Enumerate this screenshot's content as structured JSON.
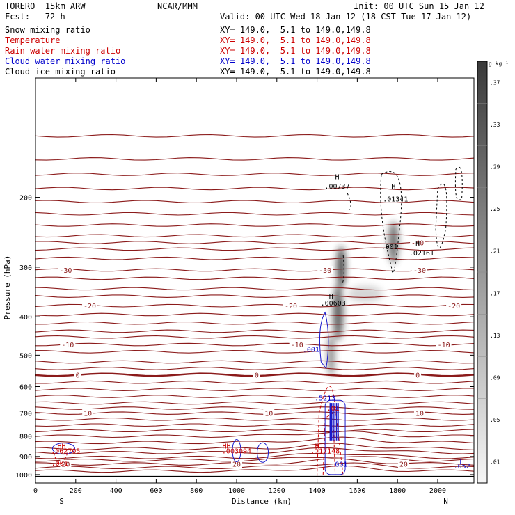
{
  "header": {
    "model": "TORERO  15km ARW",
    "org": "NCAR/MMM",
    "init": "Init: 00 UTC Sun 15 Jan 12",
    "fcst": "Fcst:   72 h",
    "valid": "Valid: 00 UTC Wed 18 Jan 12 (18 CST Tue 17 Jan 12)"
  },
  "fields": [
    {
      "name": "Snow mixing ratio",
      "xy": "XY= 149.0,  5.1 to 149.0,149.8",
      "color": "#000000"
    },
    {
      "name": "Temperature",
      "xy": "XY= 149.0,  5.1 to 149.0,149.8",
      "color": "#cc0000"
    },
    {
      "name": "Rain water mixing ratio",
      "xy": "XY= 149.0,  5.1 to 149.0,149.8",
      "color": "#cc0000"
    },
    {
      "name": "Cloud water mixing ratio",
      "xy": "XY= 149.0,  5.1 to 149.0,149.8",
      "color": "#0000cc"
    },
    {
      "name": "Cloud ice mixing ratio",
      "xy": "XY= 149.0,  5.1 to 149.0,149.8",
      "color": "#000000"
    }
  ],
  "chart_data": {
    "type": "contour",
    "title": "",
    "xlabel": "Distance (km)",
    "ylabel": "Pressure (hPa)",
    "xlim": [
      0,
      2180
    ],
    "ylim": [
      1050,
      100
    ],
    "yscale": "log",
    "x_ticks": [
      "0",
      "200",
      "400",
      "600",
      "800",
      "1000",
      "1200",
      "1400",
      "1600",
      "1800",
      "2000"
    ],
    "x_tick_values": [
      0,
      200,
      400,
      600,
      800,
      1000,
      1200,
      1400,
      1600,
      1800,
      2000
    ],
    "y_ticks": [
      "200",
      "300",
      "400",
      "500",
      "600",
      "700",
      "800",
      "900",
      "1000"
    ],
    "y_tick_values": [
      200,
      300,
      400,
      500,
      600,
      700,
      800,
      900,
      1000
    ],
    "x_end_labels": {
      "left": "S",
      "right": "N"
    },
    "temperature_contours_C": [
      {
        "value": 20,
        "p": 940,
        "label_x": [
          150,
          1000,
          1830
        ]
      },
      {
        "value": 10,
        "p": 700,
        "label_x": [
          260,
          1160,
          1910
        ]
      },
      {
        "value": 0,
        "p": 560,
        "label_x": [
          210,
          1100,
          1900
        ]
      },
      {
        "value": -10,
        "p": 470,
        "label_x": [
          160,
          1300,
          2030
        ]
      },
      {
        "value": -20,
        "p": 375,
        "label_x": [
          270,
          1270,
          2080
        ]
      },
      {
        "value": -30,
        "p": 305,
        "label_x": [
          150,
          1440,
          1910
        ]
      },
      {
        "value": -40,
        "p": 260,
        "label_x": [
          1900
        ]
      }
    ],
    "annotations": [
      {
        "text": "H",
        "x": 1500,
        "p": 180,
        "color": "#000000"
      },
      {
        "text": ".00737",
        "x": 1500,
        "p": 190,
        "color": "#000000"
      },
      {
        "text": "H",
        "x": 1780,
        "p": 190,
        "color": "#000000"
      },
      {
        "text": ".01341",
        "x": 1790,
        "p": 205,
        "color": "#000000"
      },
      {
        "text": ".001",
        "x": 1760,
        "p": 270,
        "color": "#000000"
      },
      {
        "text": "H",
        "x": 1900,
        "p": 265,
        "color": "#000000"
      },
      {
        "text": ".02161",
        "x": 1920,
        "p": 280,
        "color": "#000000"
      },
      {
        "text": "H",
        "x": 1470,
        "p": 360,
        "color": "#000000"
      },
      {
        "text": ".00603",
        "x": 1480,
        "p": 375,
        "color": "#000000"
      },
      {
        "text": ".001",
        "x": 1370,
        "p": 490,
        "color": "#0000cc"
      },
      {
        "text": ".5213",
        "x": 1440,
        "p": 650,
        "color": "#0000cc"
      },
      {
        "text": ".01",
        "x": 1480,
        "p": 690,
        "color": "#cc0000"
      },
      {
        "text": "HH",
        "x": 130,
        "p": 860,
        "color": "#cc0000"
      },
      {
        "text": ".062705",
        "x": 150,
        "p": 885,
        "color": "#cc0000"
      },
      {
        "text": ".001",
        "x": 120,
        "p": 950,
        "color": "#cc0000"
      },
      {
        "text": "HH",
        "x": 950,
        "p": 860,
        "color": "#cc0000"
      },
      {
        "text": ".003094",
        "x": 1000,
        "p": 885,
        "color": "#cc0000"
      },
      {
        "text": "H",
        "x": 1400,
        "p": 860,
        "color": "#cc0000"
      },
      {
        "text": ".117148",
        "x": 1440,
        "p": 885,
        "color": "#cc0000"
      },
      {
        "text": ".001",
        "x": 1510,
        "p": 955,
        "color": "#0000cc"
      },
      {
        "text": "H",
        "x": 2120,
        "p": 940,
        "color": "#0000cc"
      },
      {
        "text": ".052",
        "x": 2120,
        "p": 965,
        "color": "#0000cc"
      }
    ],
    "colorbar": {
      "unit": "g kg⁻¹",
      "labels": [
        ".37",
        ".33",
        ".29",
        ".25",
        ".21",
        ".17",
        ".13",
        ".09",
        ".05",
        ".01"
      ],
      "values": [
        0.37,
        0.33,
        0.29,
        0.25,
        0.21,
        0.17,
        0.13,
        0.09,
        0.05,
        0.01
      ]
    }
  }
}
